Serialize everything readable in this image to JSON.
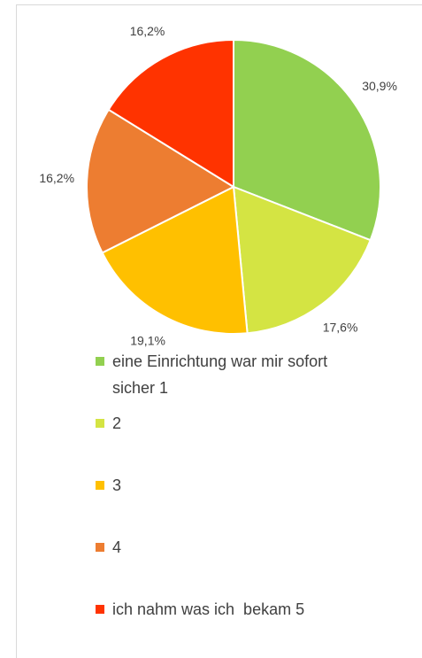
{
  "chart_data": {
    "type": "pie",
    "categories": [
      "eine Einrichtung war mir sofort sicher 1",
      "2",
      "3",
      "4",
      "ich nahm was ich  bekam 5"
    ],
    "values": [
      30.9,
      17.6,
      19.1,
      16.2,
      16.2
    ],
    "value_labels": [
      "30,9%",
      "17,6%",
      "19,1%",
      "16,2%",
      "16,2%"
    ],
    "colors": [
      "#92d050",
      "#d4e443",
      "#ffc000",
      "#ed7d31",
      "#ff3300"
    ],
    "legend": "bottom"
  }
}
